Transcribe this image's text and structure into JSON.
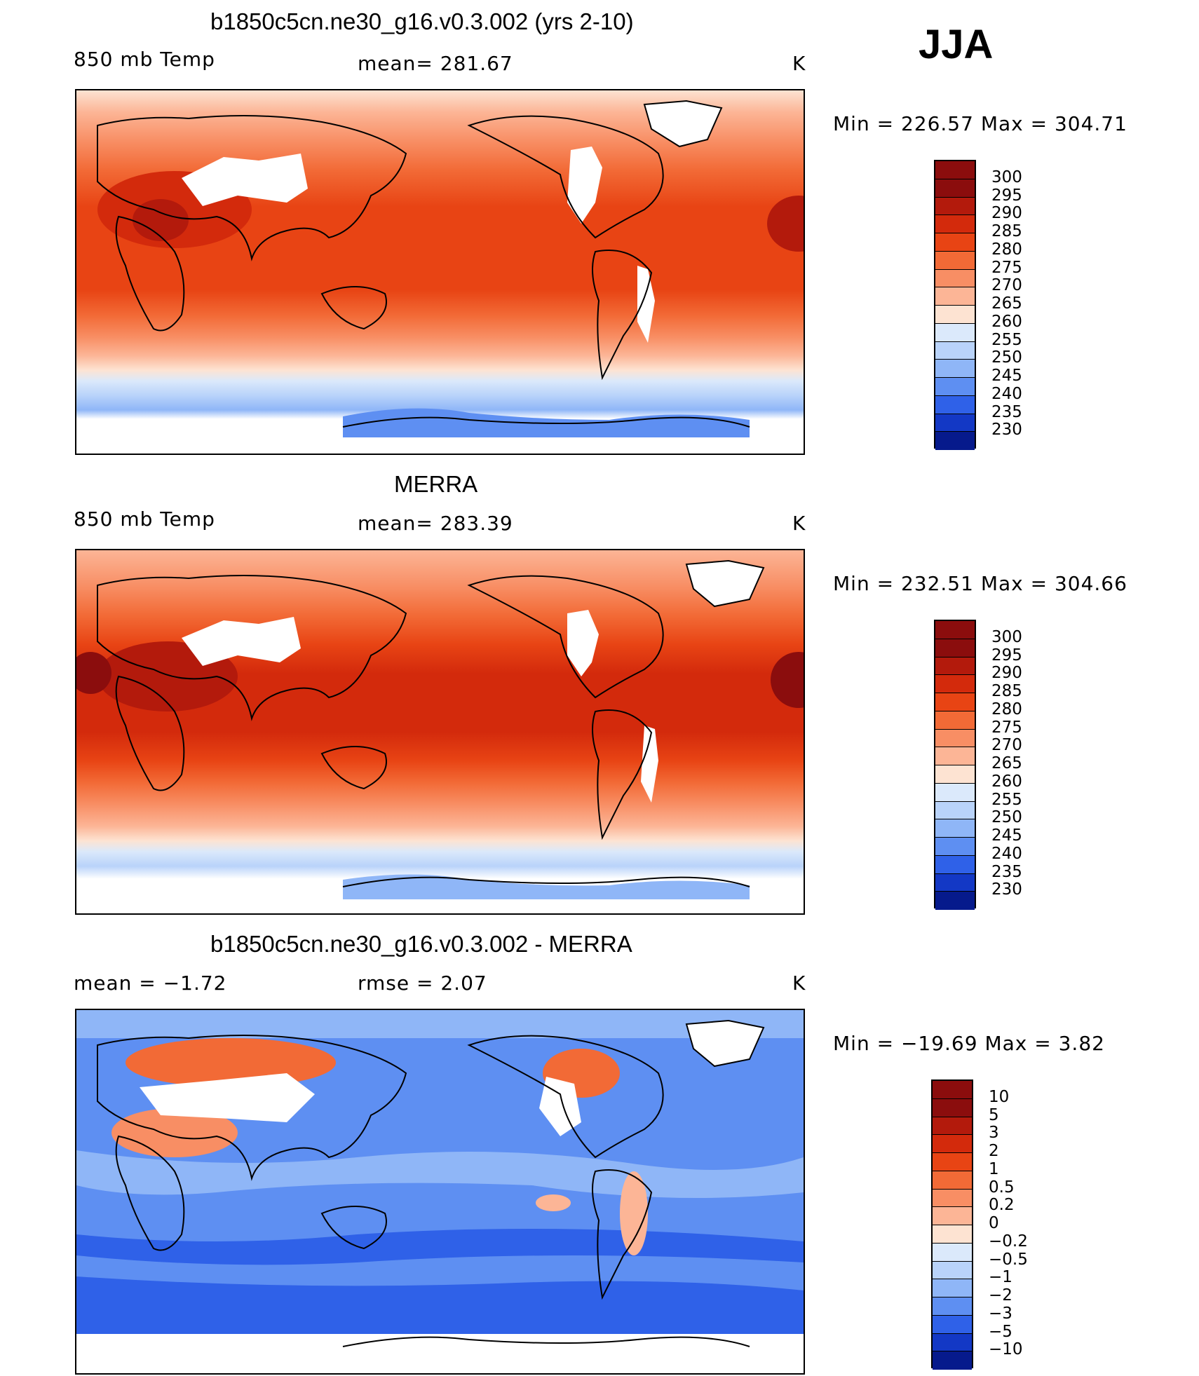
{
  "season": "JJA",
  "panels": [
    {
      "id": "model",
      "title": "b1850c5cn.ne30_g16.v0.3.002 (yrs 2-10)",
      "left_label": "850 mb Temp",
      "center_label": "mean=  281.67",
      "units": "K",
      "minmax": "Min  =  226.57  Max  =  304.71",
      "scheme": "abs",
      "levels": [
        "300",
        "295",
        "290",
        "285",
        "280",
        "275",
        "270",
        "265",
        "260",
        "255",
        "250",
        "245",
        "240",
        "235",
        "230"
      ]
    },
    {
      "id": "obs",
      "title": "MERRA",
      "left_label": "850 mb Temp",
      "center_label": "mean=  283.39",
      "units": "K",
      "minmax": "Min  =  232.51  Max  =  304.66",
      "scheme": "abs",
      "levels": [
        "300",
        "295",
        "290",
        "285",
        "280",
        "275",
        "270",
        "265",
        "260",
        "255",
        "250",
        "245",
        "240",
        "235",
        "230"
      ]
    },
    {
      "id": "diff",
      "title": "b1850c5cn.ne30_g16.v0.3.002 - MERRA",
      "left_label": "mean =    −1.72",
      "center_label": "rmse =     2.07",
      "units": "K",
      "minmax": "Min  =  −19.69  Max  =      3.82",
      "scheme": "diff",
      "levels": [
        "10",
        "5",
        "3",
        "2",
        "1",
        "0.5",
        "0.2",
        "0",
        "−0.2",
        "−0.5",
        "−1",
        "−2",
        "−3",
        "−5",
        "−10"
      ]
    }
  ],
  "colors": {
    "abs": [
      "#8b0d0d",
      "#b31a0c",
      "#d32a0c",
      "#e84414",
      "#f26a36",
      "#f88e64",
      "#fcb596",
      "#fde3d2",
      "#dbe9fb",
      "#b9d3fa",
      "#8fb6f7",
      "#5e8ff2",
      "#2f61e8",
      "#1338c5",
      "#061a8c"
    ],
    "diff": [
      "#8b0d0d",
      "#b31a0c",
      "#d32a0c",
      "#e84414",
      "#f26a36",
      "#f88e64",
      "#fcb596",
      "#fde3d2",
      "#dbe9fb",
      "#b9d3fa",
      "#8fb6f7",
      "#5e8ff2",
      "#2f61e8",
      "#1338c5",
      "#061a8c"
    ]
  }
}
